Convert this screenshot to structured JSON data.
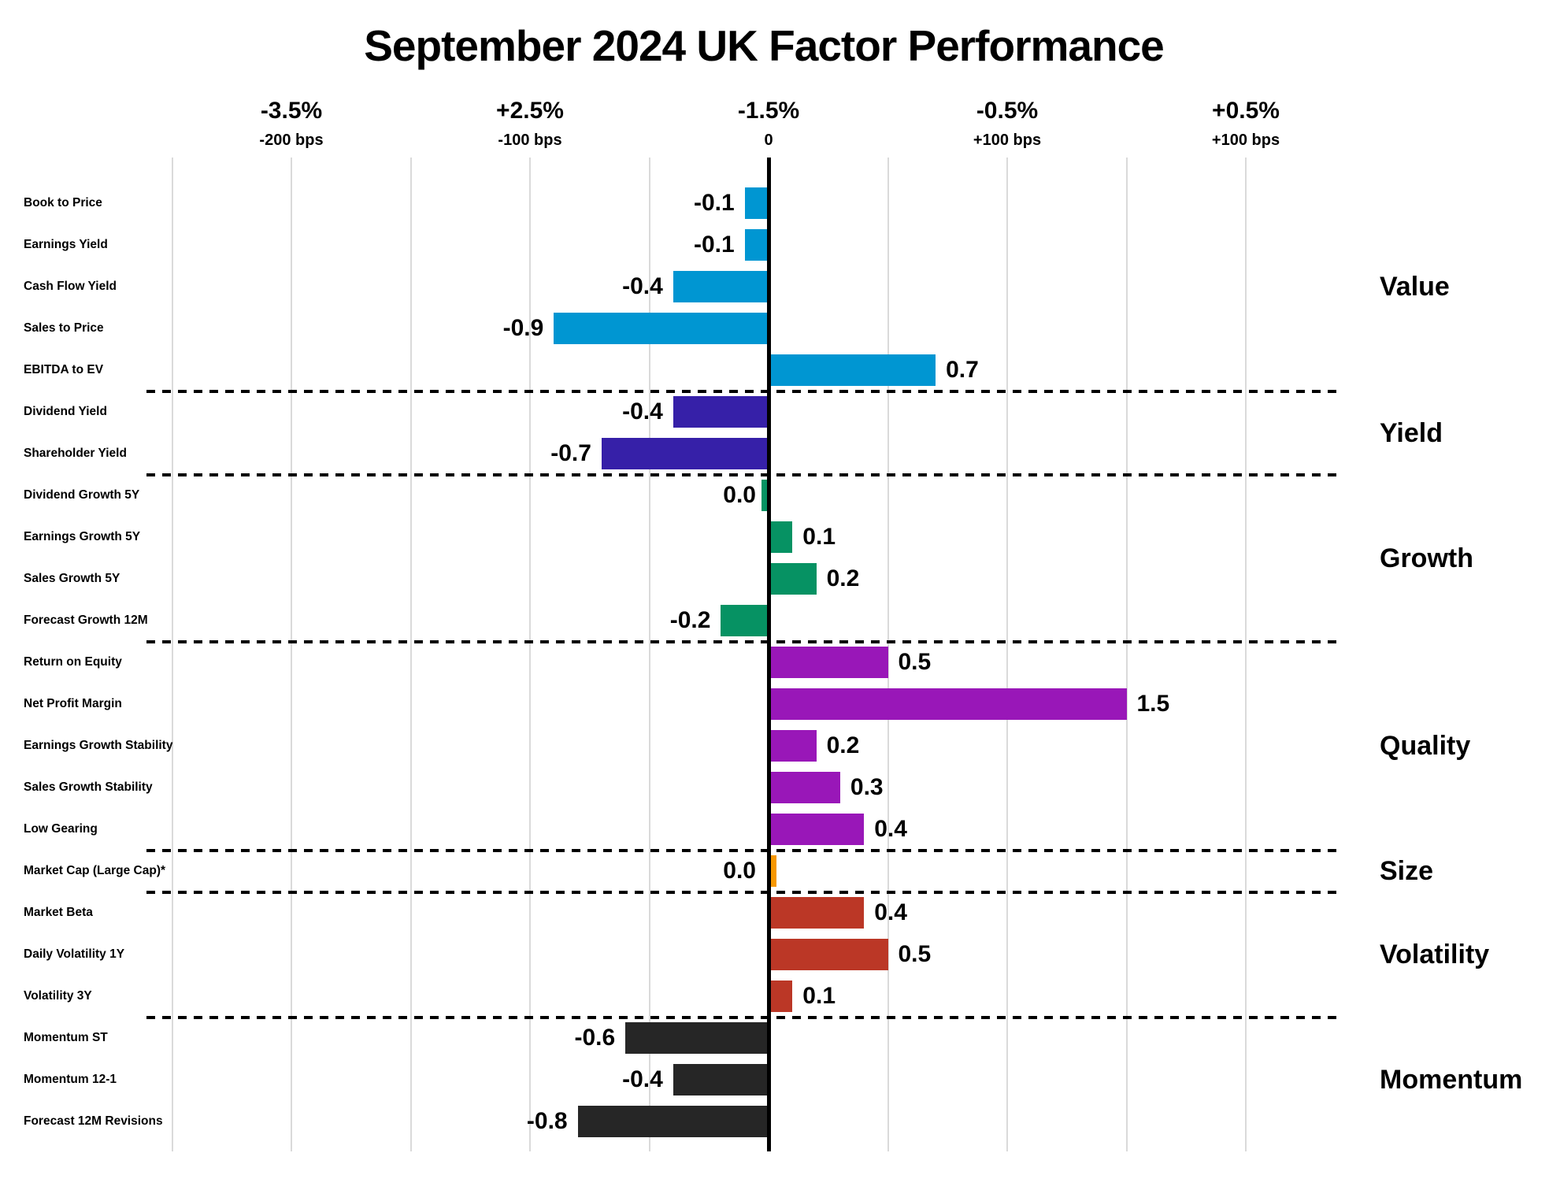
{
  "chart_data": {
    "type": "bar",
    "orientation": "horizontal",
    "title": "September 2024 UK Factor Performance",
    "value_label_format": "one_decimal",
    "gridlines": "vertical, light gray, every 0.5 units",
    "xlim_units": [
      -2.6,
      2.4
    ],
    "x_axis": {
      "ticks": [
        {
          "pct": "-3.5%",
          "bps": "-200 bps",
          "offset": -4
        },
        {
          "pct": "+2.5%",
          "bps": "-100 bps",
          "offset": -2
        },
        {
          "pct": "-1.5%",
          "bps": "0",
          "offset": 0
        },
        {
          "pct": "-0.5%",
          "bps": "+100 bps",
          "offset": 2
        },
        {
          "pct": "+0.5%",
          "bps": "+100 bps",
          "offset": 4
        }
      ]
    },
    "groups": [
      {
        "name": "Value",
        "color": "#0096D2",
        "factors": [
          "Book to Price",
          "Earnings Yield",
          "Cash Flow Yield",
          "Sales to Price",
          "EBITDA to EV"
        ],
        "values": [
          -0.1,
          -0.1,
          -0.4,
          -0.9,
          0.7
        ]
      },
      {
        "name": "Yield",
        "color": "#3620A8",
        "factors": [
          "Dividend Yield",
          "Shareholder Yield"
        ],
        "values": [
          -0.4,
          -0.7
        ]
      },
      {
        "name": "Growth",
        "color": "#069263",
        "factors": [
          "Dividend Growth 5Y",
          "Earnings Growth 5Y",
          "Sales Growth 5Y",
          "Forecast Growth 12M"
        ],
        "values": [
          0.0,
          0.1,
          0.2,
          -0.2
        ],
        "zero_sides": [
          "left",
          null,
          null,
          null
        ]
      },
      {
        "name": "Quality",
        "color": "#9917B8",
        "factors": [
          "Return on Equity",
          "Net Profit Margin",
          "Earnings Growth Stability",
          "Sales Growth Stability",
          "Low Gearing"
        ],
        "values": [
          0.5,
          1.5,
          0.2,
          0.3,
          0.4
        ]
      },
      {
        "name": "Size",
        "color": "#F79800",
        "factors": [
          "Market Cap (Large Cap)*"
        ],
        "values": [
          0.0
        ],
        "zero_sides": [
          "right"
        ]
      },
      {
        "name": "Volatility",
        "color": "#BB3726",
        "factors": [
          "Market Beta",
          "Daily Volatility 1Y",
          "Volatility 3Y"
        ],
        "values": [
          0.4,
          0.5,
          0.1
        ]
      },
      {
        "name": "Momentum",
        "color": "#262626",
        "factors": [
          "Momentum ST",
          "Momentum 12-1",
          "Forecast 12M Revisions"
        ],
        "values": [
          -0.6,
          -0.4,
          -0.8
        ]
      }
    ],
    "colors": {
      "axis_line": "#000000",
      "gridline": "#dadada",
      "separator": "#000000",
      "text": "#000000"
    }
  }
}
